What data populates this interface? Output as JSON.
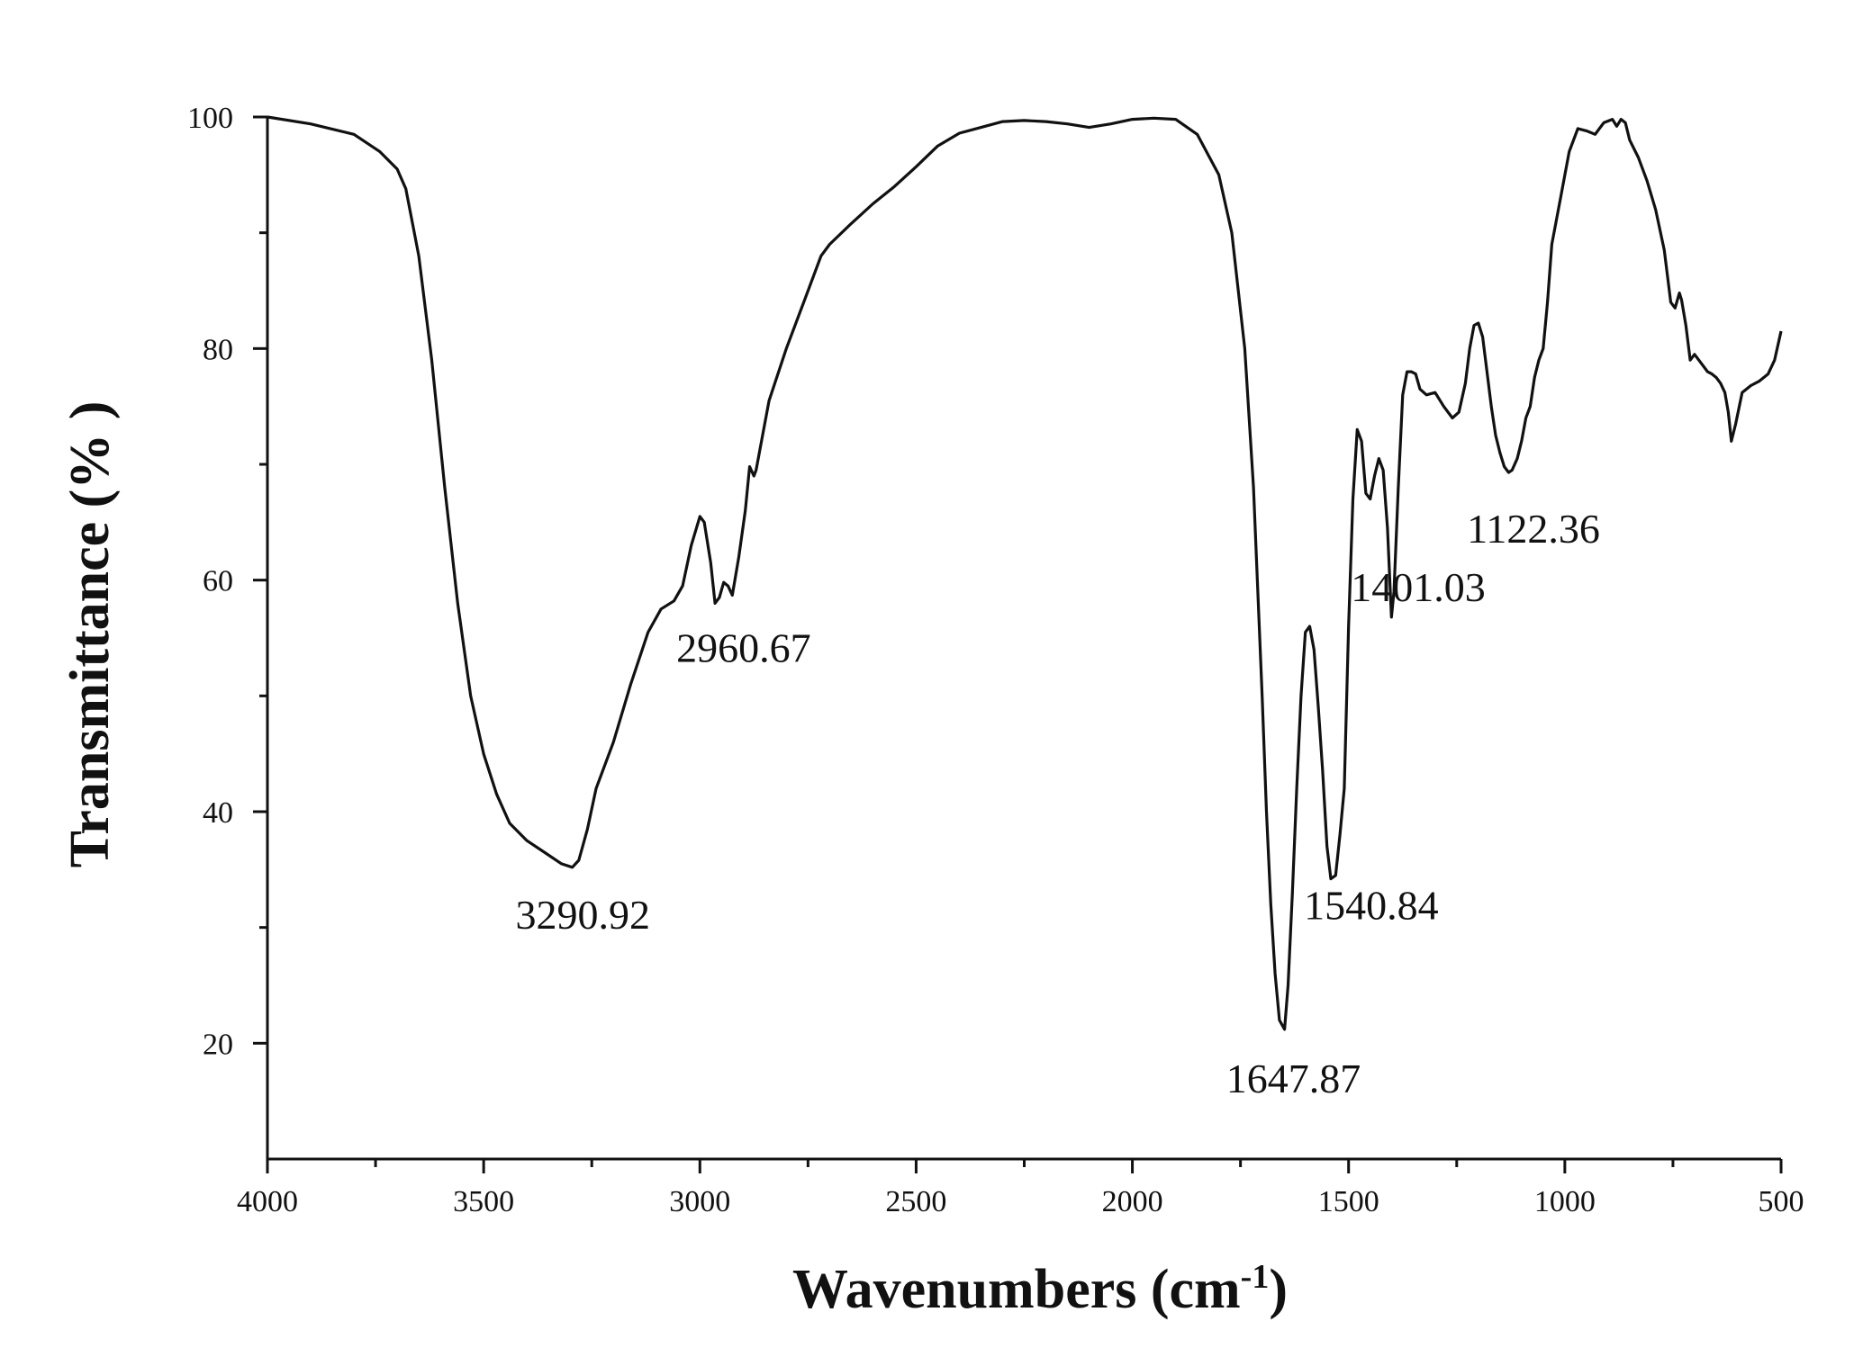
{
  "chart_data": {
    "type": "line",
    "title": "",
    "xlabel_main": "Wavenumbers (cm",
    "xlabel_sup": "-1",
    "xlabel_close": ")",
    "ylabel": "Transmittance (% )",
    "xlim": [
      4000,
      500
    ],
    "ylim": [
      10,
      100
    ],
    "x_reversed": true,
    "xticks": [
      4000,
      3500,
      3000,
      2500,
      2000,
      1500,
      1000,
      500
    ],
    "xtick_labels": [
      "4000",
      "3500",
      "3000",
      "2500",
      "2000",
      "1500",
      "1000",
      "500"
    ],
    "yticks": [
      20,
      40,
      60,
      80,
      100
    ],
    "ytick_labels": [
      "20",
      "40",
      "60",
      "80",
      "100"
    ],
    "grid": false,
    "series": [
      {
        "x": [
          4000,
          3900,
          3800,
          3740,
          3700,
          3680,
          3650,
          3620,
          3590,
          3560,
          3530,
          3500,
          3470,
          3440,
          3400,
          3360,
          3320,
          3295,
          3280,
          3260,
          3240,
          3200,
          3160,
          3120,
          3090,
          3060,
          3040,
          3020,
          3000,
          2990,
          2975,
          2965,
          2955,
          2945,
          2935,
          2925,
          2910,
          2895,
          2885,
          2875,
          2870,
          2860,
          2840,
          2800,
          2760,
          2720,
          2700,
          2650,
          2600,
          2550,
          2500,
          2450,
          2400,
          2350,
          2300,
          2250,
          2200,
          2150,
          2100,
          2050,
          2000,
          1950,
          1900,
          1850,
          1800,
          1770,
          1740,
          1720,
          1700,
          1690,
          1680,
          1670,
          1660,
          1648,
          1640,
          1630,
          1620,
          1610,
          1600,
          1590,
          1580,
          1570,
          1560,
          1550,
          1541,
          1530,
          1520,
          1510,
          1500,
          1490,
          1480,
          1470,
          1460,
          1450,
          1440,
          1430,
          1420,
          1410,
          1401,
          1395,
          1385,
          1375,
          1365,
          1355,
          1345,
          1335,
          1320,
          1300,
          1280,
          1260,
          1245,
          1230,
          1220,
          1210,
          1200,
          1190,
          1180,
          1170,
          1160,
          1150,
          1140,
          1130,
          1122,
          1110,
          1100,
          1090,
          1080,
          1070,
          1060,
          1050,
          1040,
          1030,
          1010,
          990,
          970,
          950,
          930,
          910,
          890,
          880,
          870,
          860,
          850,
          830,
          810,
          790,
          770,
          755,
          745,
          735,
          730,
          720,
          710,
          700,
          690,
          680,
          670,
          660,
          650,
          640,
          630,
          622,
          615,
          605,
          590,
          570,
          550,
          530,
          515,
          500
        ],
        "values": [
          100,
          99.4,
          98.5,
          97,
          95.5,
          93.8,
          88,
          79,
          68,
          58,
          50,
          45,
          41.5,
          39,
          37.5,
          36.5,
          35.5,
          35.2,
          35.8,
          38.5,
          42,
          46,
          51,
          55.5,
          57.5,
          58.2,
          59.5,
          63,
          65.5,
          65,
          61.5,
          58,
          58.5,
          59.8,
          59.5,
          58.7,
          62,
          66,
          69.8,
          69,
          69.5,
          71.5,
          75.5,
          80,
          84,
          88,
          89,
          90.8,
          92.5,
          94,
          95.7,
          97.5,
          98.6,
          99.1,
          99.6,
          99.7,
          99.6,
          99.4,
          99.1,
          99.4,
          99.8,
          99.9,
          99.8,
          98.5,
          95,
          90,
          80,
          68,
          50,
          40,
          32,
          26,
          22,
          21.2,
          25,
          33,
          42,
          50,
          55.5,
          56,
          54,
          49,
          43.5,
          37,
          34.2,
          34.5,
          38,
          42,
          56,
          67,
          73,
          72,
          67.5,
          67,
          69,
          70.5,
          69.5,
          64.5,
          56.8,
          59,
          68,
          76,
          78,
          78,
          77.8,
          76.5,
          76,
          76.2,
          75,
          74,
          74.5,
          77,
          80,
          82,
          82.2,
          81,
          78,
          75,
          72.5,
          71,
          69.8,
          69.3,
          69.5,
          70.5,
          72,
          74,
          75,
          77.5,
          79,
          80,
          84,
          89,
          93,
          97,
          99,
          98.8,
          98.5,
          99.5,
          99.8,
          99.2,
          99.8,
          99.5,
          98,
          96.5,
          94.5,
          92,
          88.5,
          84,
          83.5,
          84.8,
          84.2,
          82,
          79,
          79.5,
          79,
          78.5,
          78,
          77.8,
          77.5,
          77,
          76.2,
          74.5,
          72,
          73.5,
          76.2,
          76.8,
          77.2,
          77.8,
          79,
          81.5
        ]
      }
    ],
    "annotations": [
      {
        "text": "3290.92",
        "x": 3290.92,
        "y": 35.2
      },
      {
        "text": "2960.67",
        "x": 2960.67,
        "y": 58
      },
      {
        "text": "1647.87",
        "x": 1647.87,
        "y": 21.2
      },
      {
        "text": "1540.84",
        "x": 1540.84,
        "y": 34.2
      },
      {
        "text": "1401.03",
        "x": 1401.03,
        "y": 56.8
      },
      {
        "text": "1122.36",
        "x": 1122.36,
        "y": 69.3
      }
    ]
  }
}
